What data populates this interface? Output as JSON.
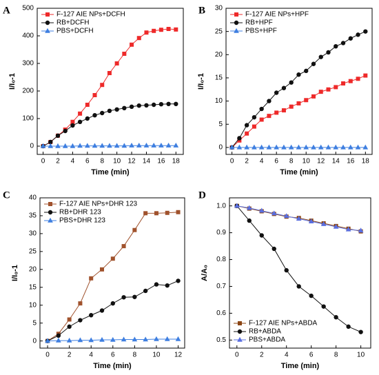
{
  "chart_data": [
    {
      "type": "line",
      "panel": "A",
      "xlabel": "Time (min)",
      "ylabel": "I/I₀-1",
      "legend": "upper left",
      "x": [
        0,
        1,
        2,
        3,
        4,
        5,
        6,
        7,
        8,
        9,
        10,
        11,
        12,
        13,
        14,
        15,
        16,
        17,
        18
      ],
      "xlim": [
        -0.8,
        19
      ],
      "xticks": [
        0,
        2,
        4,
        6,
        8,
        10,
        12,
        14,
        16,
        18
      ],
      "ylim": [
        -30,
        500
      ],
      "yticks": [
        0,
        100,
        200,
        300,
        400,
        500
      ],
      "series": [
        {
          "name": "F-127 AIE NPs+DCFH",
          "color": "#ee2a2a",
          "marker": "square",
          "values": [
            0,
            15,
            38,
            60,
            88,
            118,
            150,
            185,
            222,
            265,
            300,
            335,
            368,
            392,
            412,
            418,
            422,
            425,
            423
          ]
        },
        {
          "name": "RB+DCFH",
          "color": "#111111",
          "marker": "circle",
          "values": [
            0,
            15,
            38,
            55,
            75,
            88,
            100,
            112,
            120,
            128,
            133,
            138,
            143,
            147,
            148,
            150,
            152,
            153,
            153
          ]
        },
        {
          "name": "PBS+DCFH",
          "color": "#3f7fe0",
          "marker": "triangle",
          "values": [
            0,
            0,
            0,
            0,
            0,
            1,
            1,
            1,
            1,
            1,
            1,
            1,
            2,
            2,
            2,
            2,
            2,
            2,
            2
          ]
        }
      ]
    },
    {
      "type": "line",
      "panel": "B",
      "xlabel": "Time (min)",
      "ylabel": "I/I₀-1",
      "legend": "upper left",
      "x": [
        0,
        1,
        2,
        3,
        4,
        5,
        6,
        7,
        8,
        9,
        10,
        11,
        12,
        13,
        14,
        15,
        16,
        17,
        18
      ],
      "xlim": [
        -0.8,
        18.9
      ],
      "xticks": [
        0,
        2,
        4,
        6,
        8,
        10,
        12,
        14,
        16,
        18
      ],
      "ylim": [
        -1.5,
        30
      ],
      "yticks": [
        0,
        5,
        10,
        15,
        20,
        25,
        30
      ],
      "series": [
        {
          "name": "F-127 AIE NPs+HPF",
          "color": "#ee2a2a",
          "marker": "square",
          "values": [
            0,
            1.5,
            3,
            4.5,
            6,
            6.8,
            7.5,
            8,
            8.8,
            9.5,
            10.2,
            11,
            12,
            12.5,
            13,
            13.8,
            14.3,
            14.8,
            15.5
          ]
        },
        {
          "name": "RB+HPF",
          "color": "#111111",
          "marker": "circle",
          "values": [
            0,
            2,
            4.8,
            6.5,
            8.3,
            10,
            11.8,
            12.8,
            14,
            15.7,
            16.5,
            18,
            19.5,
            20.5,
            21.8,
            22.5,
            23.5,
            24.3,
            25
          ]
        },
        {
          "name": "PBS+HPF",
          "color": "#3f7fe0",
          "marker": "triangle",
          "values": [
            0,
            0,
            0,
            0,
            0,
            0,
            0,
            0,
            0,
            0,
            0,
            0,
            0,
            0,
            0,
            0,
            0,
            0,
            0
          ]
        }
      ]
    },
    {
      "type": "line",
      "panel": "C",
      "xlabel": "Time (min)",
      "ylabel": "I/I₀-1",
      "legend": "upper left",
      "x": [
        0,
        1,
        2,
        3,
        4,
        5,
        6,
        7,
        8,
        9,
        10,
        11,
        12
      ],
      "xlim": [
        -0.7,
        12.6
      ],
      "xticks": [
        0,
        2,
        4,
        6,
        8,
        10,
        12
      ],
      "ylim": [
        -2,
        40
      ],
      "yticks": [
        0,
        5,
        10,
        15,
        20,
        25,
        30,
        35,
        40
      ],
      "series": [
        {
          "name": "F-127 AIE NPs+DHR 123",
          "color": "#a0522d",
          "marker": "square",
          "values": [
            0,
            2,
            6,
            10.5,
            17.5,
            20,
            23,
            26.5,
            31,
            35.7,
            35.7,
            35.8,
            36
          ]
        },
        {
          "name": "RB+DHR 123",
          "color": "#111111",
          "marker": "circle",
          "values": [
            0,
            1.5,
            4,
            5.8,
            7.2,
            8.5,
            10.5,
            12.2,
            12.3,
            14,
            15.8,
            15.5,
            16.8
          ]
        },
        {
          "name": "PBS+DHR 123",
          "color": "#3f7fe0",
          "marker": "triangle",
          "values": [
            0,
            0.1,
            0.1,
            0.2,
            0.2,
            0.3,
            0.3,
            0.4,
            0.4,
            0.4,
            0.5,
            0.5,
            0.5
          ]
        }
      ]
    },
    {
      "type": "line",
      "panel": "D",
      "xlabel": "Time (min)",
      "ylabel": "A/A₀",
      "legend": "lower left",
      "x": [
        0,
        1,
        2,
        3,
        4,
        5,
        6,
        7,
        8,
        9,
        10
      ],
      "xlim": [
        -0.6,
        10.8
      ],
      "xticks": [
        0,
        2,
        4,
        6,
        8,
        10
      ],
      "ylim": [
        0.47,
        1.03
      ],
      "yticks": [
        0.5,
        0.6,
        0.7,
        0.8,
        0.9,
        {
          "value": 1,
          "label": "1.0"
        }
      ],
      "series": [
        {
          "name": "F-127 AIE NPs+ABDA",
          "color": "#8b4513",
          "marker": "square",
          "values": [
            1,
            0.99,
            0.98,
            0.97,
            0.96,
            0.955,
            0.945,
            0.935,
            0.925,
            0.915,
            0.905
          ]
        },
        {
          "name": "RB+ABDA",
          "color": "#111111",
          "marker": "circle",
          "values": [
            1,
            0.945,
            0.89,
            0.84,
            0.76,
            0.7,
            0.665,
            0.625,
            0.585,
            0.55,
            0.53
          ]
        },
        {
          "name": "PBS+ABDA",
          "color": "#5a6fe0",
          "marker": "triangle",
          "values": [
            1,
            0.992,
            0.982,
            0.972,
            0.962,
            0.952,
            0.942,
            0.932,
            0.922,
            0.912,
            0.908
          ]
        }
      ]
    }
  ]
}
